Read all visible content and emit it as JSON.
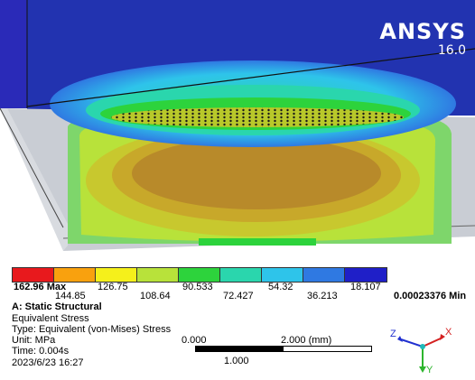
{
  "brand": {
    "name": "ANSYS",
    "version": "16.0"
  },
  "legend": {
    "colors": [
      "#e8191d",
      "#f9a10e",
      "#f5f01b",
      "#b8e23a",
      "#2dd33c",
      "#2ad6ad",
      "#2ec4ea",
      "#2f79e2",
      "#1f1fc8"
    ],
    "max_label": "162.96 Max",
    "upper_ticks": [
      "126.75",
      "90.533",
      "54.32",
      "18.107"
    ],
    "lower_ticks": [
      "144.85",
      "108.64",
      "72.427",
      "36.213"
    ],
    "min_label": "0.00023376 Min"
  },
  "info": {
    "title": "A: Static Structural",
    "result": "Equivalent Stress",
    "type": "Type: Equivalent (von-Mises) Stress",
    "unit": "Unit: MPa",
    "time": "Time: 0.004s",
    "date": "2023/6/23 16:27"
  },
  "scale": {
    "left": "0.000",
    "right": "2.000 (mm)",
    "mid": "1.000"
  },
  "triad": {
    "x": "X",
    "y": "Y",
    "z": "Z"
  }
}
